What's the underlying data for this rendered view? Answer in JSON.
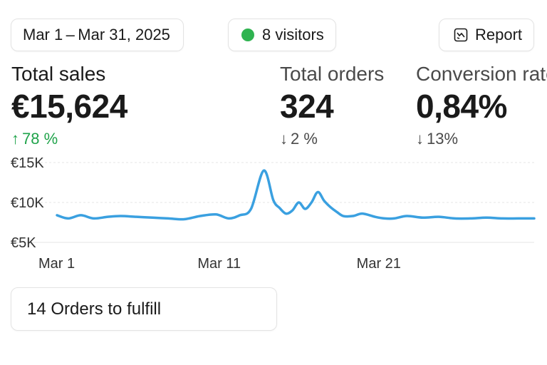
{
  "header": {
    "date_range": "Mar 1 – Mar 31, 2025",
    "visitors": "8 visitors",
    "report_label": "Report"
  },
  "metrics": [
    {
      "label": "Total sales",
      "value": "€15,624",
      "change": "78 %",
      "direction": "up"
    },
    {
      "label": "Total orders",
      "value": "324",
      "change": "2 %",
      "direction": "down"
    },
    {
      "label": "Conversion rate",
      "value": "0,84%",
      "change": "13%",
      "direction": "down"
    }
  ],
  "colors": {
    "accent_line": "#3aa0e0",
    "positive": "#1fa34a",
    "live_dot": "#2fb350"
  },
  "chart_data": {
    "type": "line",
    "title": "",
    "xlabel": "",
    "ylabel": "",
    "ylim": [
      5000,
      15000
    ],
    "y_ticks": [
      "€5K",
      "€10K",
      "€15K"
    ],
    "y_tick_values": [
      5000,
      10000,
      15000
    ],
    "x_ticks": [
      "Mar 1",
      "Mar 11",
      "Mar 21"
    ],
    "x_tick_values": [
      1,
      11,
      21
    ],
    "xlim": [
      1,
      31
    ],
    "grid": true,
    "series": [
      {
        "x": [
          1,
          1.7,
          2.5,
          3.3,
          4.2,
          5,
          6,
          7,
          8,
          9,
          10,
          11,
          11.8,
          12.5,
          13.2,
          14,
          14.6,
          15,
          15.4,
          15.8,
          16.2,
          16.6,
          17,
          17.4,
          17.8,
          18.2,
          18.6,
          19,
          19.6,
          20.2,
          21,
          21.6,
          22.2,
          23,
          24,
          25,
          26,
          27,
          28,
          29,
          30,
          31
        ],
        "values": [
          8400,
          8000,
          8400,
          8000,
          8200,
          8300,
          8200,
          8100,
          8000,
          7900,
          8300,
          8500,
          8000,
          8400,
          9200,
          14000,
          10300,
          9300,
          8600,
          9000,
          10000,
          9200,
          10000,
          11300,
          10200,
          9400,
          8800,
          8300,
          8300,
          8600,
          8200,
          8000,
          8000,
          8300,
          8100,
          8200,
          8000,
          8000,
          8100,
          8000,
          8000,
          8000
        ]
      }
    ]
  },
  "fulfill": {
    "label": "14 Orders to fulfill"
  }
}
